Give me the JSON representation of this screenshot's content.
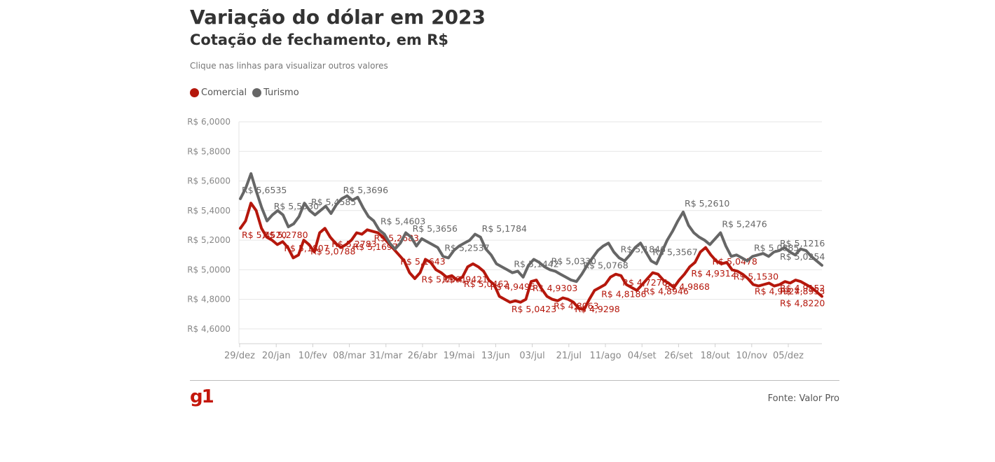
{
  "header": {
    "title": "Variação do dólar em 2023",
    "subtitle": "Cotação de fechamento, em R$",
    "hint": "Clique nas linhas para visualizar outros valores"
  },
  "legend": [
    {
      "label": "Comercial",
      "color": "#b5170c"
    },
    {
      "label": "Turismo",
      "color": "#666666"
    }
  ],
  "footer": {
    "logo": "g1",
    "source": "Fonte: Valor Pro"
  },
  "chart_data": {
    "type": "line",
    "title": "Variação do dólar em 2023",
    "subtitle": "Cotação de fechamento, em R$",
    "ylim": [
      4.5,
      6.0
    ],
    "yticks": [
      4.6,
      4.8,
      5.0,
      5.2,
      5.4,
      5.6,
      5.8,
      6.0
    ],
    "ytick_labels": [
      "R$ 4,6000",
      "R$ 4,8000",
      "R$ 5,0000",
      "R$ 5,2000",
      "R$ 5,4000",
      "R$ 5,6000",
      "R$ 5,8000",
      "R$ 6,0000"
    ],
    "x_tick_labels": [
      "29/dez",
      "20/jan",
      "10/fev",
      "08/mar",
      "31/mar",
      "26/abr",
      "19/mai",
      "13/jun",
      "03/jul",
      "21/jul",
      "11/ago",
      "04/set",
      "26/set",
      "18/out",
      "10/nov",
      "05/dez"
    ],
    "grid": true,
    "legend_position": "top-left",
    "series": [
      {
        "name": "Comercial",
        "color": "#b5170c",
        "values": [
          5.28,
          5.33,
          5.45,
          5.4,
          5.28,
          5.22,
          5.2,
          5.17,
          5.19,
          5.15,
          5.08,
          5.1,
          5.2,
          5.17,
          5.12,
          5.25,
          5.28,
          5.22,
          5.18,
          5.15,
          5.17,
          5.2,
          5.25,
          5.24,
          5.27,
          5.26,
          5.25,
          5.22,
          5.18,
          5.14,
          5.1,
          5.06,
          4.98,
          4.94,
          4.98,
          5.07,
          5.05,
          5.0,
          4.98,
          4.95,
          4.96,
          4.93,
          4.95,
          5.02,
          5.04,
          5.02,
          4.99,
          4.93,
          4.9,
          4.82,
          4.8,
          4.78,
          4.79,
          4.78,
          4.8,
          4.92,
          4.93,
          4.87,
          4.82,
          4.8,
          4.79,
          4.81,
          4.8,
          4.78,
          4.74,
          4.73,
          4.8,
          4.86,
          4.88,
          4.9,
          4.95,
          4.97,
          4.96,
          4.9,
          4.88,
          4.86,
          4.9,
          4.94,
          4.98,
          4.97,
          4.93,
          4.91,
          4.88,
          4.93,
          4.97,
          5.02,
          5.05,
          5.12,
          5.15,
          5.1,
          5.06,
          5.04,
          5.05,
          5.0,
          4.99,
          4.97,
          4.94,
          4.9,
          4.89,
          4.9,
          4.91,
          4.89,
          4.9,
          4.92,
          4.91,
          4.93,
          4.92,
          4.9,
          4.88,
          4.85,
          4.82
        ],
        "labels": [
          "R$ 5,4520",
          "R$ 5,2780",
          "R$ 5,1807",
          "R$ 5,0788",
          "R$ 5,2783",
          "R$ 5,1697",
          "R$ 5,2683",
          "R$ 5,1643",
          "R$ 5,0691",
          "R$ 4,9421",
          "R$ 5,0462",
          "R$ 4,9495",
          "R$ 5,0423",
          "R$ 4,9303",
          "R$ 4,8063",
          "R$ 4,9298",
          "R$ 4,8186",
          "R$ 4,7276",
          "R$ 4,8946",
          "R$ 4,9868",
          "R$ 4,9312",
          "R$ 5,0478",
          "R$ 5,1530",
          "R$ 4,9927",
          "R$ 4,8953",
          "R$ 4,9152",
          "R$ 4,8220"
        ]
      },
      {
        "name": "Turismo",
        "color": "#666666",
        "values": [
          5.48,
          5.55,
          5.65,
          5.53,
          5.42,
          5.33,
          5.37,
          5.4,
          5.37,
          5.29,
          5.31,
          5.36,
          5.45,
          5.4,
          5.37,
          5.4,
          5.43,
          5.38,
          5.44,
          5.48,
          5.5,
          5.47,
          5.49,
          5.42,
          5.36,
          5.33,
          5.27,
          5.24,
          5.18,
          5.14,
          5.18,
          5.25,
          5.22,
          5.16,
          5.21,
          5.19,
          5.17,
          5.15,
          5.09,
          5.08,
          5.13,
          5.16,
          5.18,
          5.2,
          5.24,
          5.22,
          5.14,
          5.1,
          5.04,
          5.02,
          5.0,
          4.98,
          4.99,
          4.95,
          5.03,
          5.07,
          5.05,
          5.02,
          5.0,
          4.99,
          4.97,
          4.95,
          4.93,
          4.92,
          4.97,
          5.03,
          5.08,
          5.13,
          5.16,
          5.18,
          5.12,
          5.08,
          5.06,
          5.1,
          5.15,
          5.18,
          5.12,
          5.06,
          5.04,
          5.12,
          5.2,
          5.26,
          5.33,
          5.39,
          5.3,
          5.25,
          5.22,
          5.2,
          5.17,
          5.21,
          5.25,
          5.16,
          5.09,
          5.1,
          5.08,
          5.06,
          5.09,
          5.1,
          5.11,
          5.09,
          5.12,
          5.13,
          5.15,
          5.12,
          5.1,
          5.14,
          5.13,
          5.09,
          5.06,
          5.03
        ],
        "labels": [
          "R$ 5,6535",
          "R$ 5,5530",
          "R$ 5,4585",
          "R$ 5,3696",
          "R$ 5,4603",
          "R$ 5,3656",
          "R$ 5,2537",
          "R$ 5,1784",
          "R$ 5,1442",
          "R$ 5,0330",
          "R$ 5,0768",
          "R$ 5,1846",
          "R$ 5,3567",
          "R$ 5,2610",
          "R$ 5,2476",
          "R$ 5,0885",
          "R$ 5,1216",
          "R$ 5,0254"
        ]
      }
    ]
  }
}
